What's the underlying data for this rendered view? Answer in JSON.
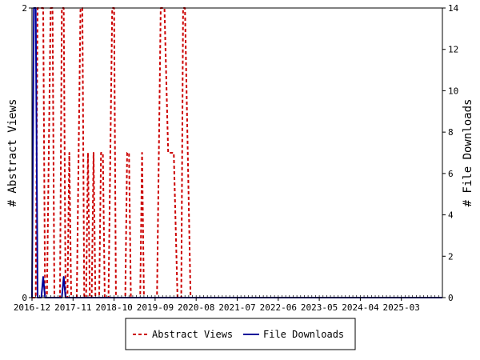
{
  "chart_data": {
    "type": "line",
    "x_tick_labels": [
      "2016-12",
      "2017-11",
      "2018-10",
      "2019-09",
      "2020-08",
      "2021-07",
      "2022-06",
      "2023-05",
      "2024-04",
      "2025-03"
    ],
    "ylabel_left": "# Abstract Views",
    "ylabel_right": "# File Downloads",
    "ylim_left": [
      0,
      2
    ],
    "ylim_right": [
      0,
      14
    ],
    "yticks_left": [
      0,
      2
    ],
    "yticks_right": [
      0,
      2,
      4,
      6,
      8,
      10,
      12,
      14
    ],
    "grid": false,
    "legend_position": "bottom",
    "x_start": "2016-12",
    "months": 110,
    "series": [
      {
        "name": "Abstract Views",
        "axis": "left",
        "color": "#cc0000",
        "style": "dashed",
        "points": [
          [
            0,
            0
          ],
          [
            1,
            0
          ],
          [
            1.5,
            2
          ],
          [
            2,
            2
          ],
          [
            3,
            2
          ],
          [
            3.5,
            0
          ],
          [
            4,
            0
          ],
          [
            5,
            2
          ],
          [
            5.5,
            2
          ],
          [
            6,
            0
          ],
          [
            7.5,
            0
          ],
          [
            8,
            2
          ],
          [
            8.5,
            2
          ],
          [
            9,
            0
          ],
          [
            9.5,
            0
          ],
          [
            10,
            1
          ],
          [
            10.5,
            0
          ],
          [
            12,
            0
          ],
          [
            13,
            2
          ],
          [
            13.5,
            2
          ],
          [
            14,
            0
          ],
          [
            14.5,
            0
          ],
          [
            15,
            1
          ],
          [
            15.5,
            0
          ],
          [
            16,
            0
          ],
          [
            16.5,
            1
          ],
          [
            17,
            0
          ],
          [
            18,
            0
          ],
          [
            18.5,
            1
          ],
          [
            19,
            1
          ],
          [
            19.5,
            0
          ],
          [
            20.5,
            0
          ],
          [
            21.5,
            2
          ],
          [
            22,
            2
          ],
          [
            22.5,
            0
          ],
          [
            25,
            0
          ],
          [
            25.5,
            1
          ],
          [
            26,
            1
          ],
          [
            26.5,
            0
          ],
          [
            29,
            0
          ],
          [
            29.5,
            1
          ],
          [
            30,
            0
          ],
          [
            33.5,
            0
          ],
          [
            34.5,
            2
          ],
          [
            35,
            2
          ],
          [
            35.5,
            2
          ],
          [
            36.5,
            1
          ],
          [
            37,
            1
          ],
          [
            38,
            1
          ],
          [
            39,
            0
          ],
          [
            40,
            0
          ],
          [
            40.5,
            2
          ],
          [
            41,
            2
          ],
          [
            42.5,
            0
          ],
          [
            43,
            0
          ]
        ]
      },
      {
        "name": "File Downloads",
        "axis": "right",
        "color": "#000099",
        "style": "solid",
        "points": [
          [
            0,
            0
          ],
          [
            0.5,
            14
          ],
          [
            1,
            14
          ],
          [
            1.5,
            0
          ],
          [
            2.5,
            0
          ],
          [
            3,
            1
          ],
          [
            3.5,
            0
          ],
          [
            8,
            0
          ],
          [
            8.5,
            1
          ],
          [
            9,
            0
          ],
          [
            110,
            0
          ]
        ]
      }
    ]
  }
}
